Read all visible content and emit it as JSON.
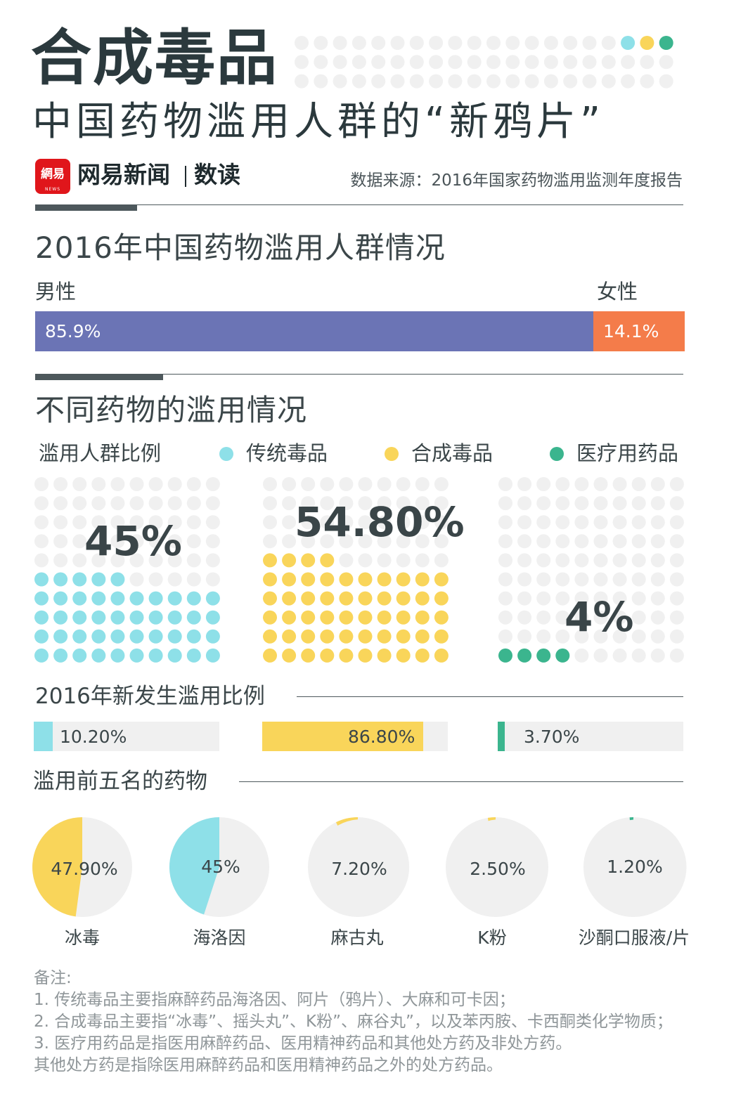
{
  "header": {
    "title": "合成毒品",
    "subtitle": "中国药物滥用人群的“新鸦片”",
    "logo_text": "網易",
    "logo_small": "NEWS",
    "brand": "网易新闻",
    "brand_column": "数读",
    "source": "数据来源：2016年国家药物滥用监测年度报告",
    "dot_colors": [
      "#8ee0e8",
      "#f9d55a",
      "#3bb58e"
    ]
  },
  "colors": {
    "traditional": "#8ee0e8",
    "synthetic": "#f9d55a",
    "medical": "#3bb58e",
    "male": "#6b74b5",
    "female": "#f47c4a",
    "empty_dot": "#f0f0f0"
  },
  "section1": {
    "title": "2016年中国药物滥用人群情况",
    "male_label": "男性",
    "female_label": "女性"
  },
  "section2": {
    "title": "不同药物的滥用情况",
    "ratio_label": "滥用人群比例",
    "legend": [
      "传统毒品",
      "合成毒品",
      "医疗用药品"
    ],
    "new_label": "2016年新发生滥用比例",
    "top5_label": "滥用前五名的药物"
  },
  "notes": {
    "title": "备注:",
    "lines": [
      "1. 传统毒品主要指麻醉药品海洛因、阿片（鸦片）、大麻和可卡因；",
      "2. 合成毒品主要指“冰毒”、摇头丸”、K粉”、麻谷丸”，以及苯丙胺、卡西酮类化学物质；",
      "3. 医疗用药品是指医用麻醉药品、医用精神药品和其他处方药及非处方药。",
      "其他处方药是指除医用麻醉药品和医用精神药品之外的处方药品。"
    ]
  },
  "chart_data": [
    {
      "type": "bar",
      "title": "2016年中国药物滥用人群情况",
      "categories": [
        "男性",
        "女性"
      ],
      "values": [
        85.9,
        14.1
      ],
      "value_labels": [
        "85.9%",
        "14.1%"
      ],
      "stacked": true
    },
    {
      "type": "waffle",
      "title": "滥用人群比例",
      "categories": [
        "传统毒品",
        "合成毒品",
        "医疗用药品"
      ],
      "values": [
        45,
        54.8,
        4
      ],
      "value_labels": [
        "45%",
        "54.80%",
        "4%"
      ]
    },
    {
      "type": "bar",
      "title": "2016年新发生滥用比例",
      "categories": [
        "传统毒品",
        "合成毒品",
        "医疗用药品"
      ],
      "values": [
        10.2,
        86.8,
        3.7
      ],
      "value_labels": [
        "10.20%",
        "86.80%",
        "3.70%"
      ]
    },
    {
      "type": "pie",
      "title": "滥用前五名的药物",
      "categories": [
        "冰毒",
        "海洛因",
        "麻古丸",
        "K粉",
        "沙酮口服液/片"
      ],
      "values": [
        47.9,
        45,
        7.2,
        2.5,
        1.2
      ],
      "value_labels": [
        "47.90%",
        "45%",
        "7.20%",
        "2.50%",
        "1.20%"
      ],
      "colors": [
        "#f9d55a",
        "#8ee0e8",
        "#f9d55a",
        "#f9d55a",
        "#3bb58e"
      ]
    }
  ]
}
